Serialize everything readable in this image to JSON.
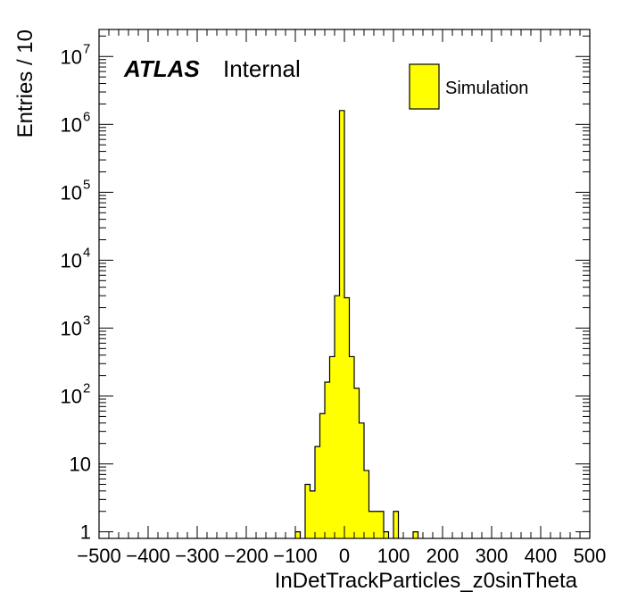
{
  "experiment_label": "ATLAS",
  "status_label": "Internal",
  "chart_data": {
    "type": "histogram",
    "xlabel": "InDetTrackParticles_z0sinTheta",
    "ylabel": "Entries / 10",
    "xlim": [
      -500,
      500
    ],
    "ylim": [
      0.8,
      25000000
    ],
    "log_y": true,
    "bin_width": 10,
    "x_ticks": [
      -500,
      -400,
      -300,
      -200,
      -100,
      0,
      100,
      200,
      300,
      400,
      500
    ],
    "x_tick_labels": [
      "−500",
      "−400",
      "−300",
      "−200",
      "−100",
      "0",
      "100",
      "200",
      "300",
      "400",
      "500"
    ],
    "y_ticks": [
      {
        "value": 1,
        "base": "1",
        "exp": ""
      },
      {
        "value": 10,
        "base": "10",
        "exp": ""
      },
      {
        "value": 100,
        "base": "10",
        "exp": "2"
      },
      {
        "value": 1000,
        "base": "10",
        "exp": "3"
      },
      {
        "value": 10000,
        "base": "10",
        "exp": "4"
      },
      {
        "value": 100000,
        "base": "10",
        "exp": "5"
      },
      {
        "value": 1000000,
        "base": "10",
        "exp": "6"
      },
      {
        "value": 10000000,
        "base": "10",
        "exp": "7"
      }
    ],
    "legend": {
      "position": "top-right",
      "entries": [
        {
          "name": "Simulation",
          "color": "#ffff00"
        }
      ]
    },
    "series": [
      {
        "name": "Simulation",
        "color": "#ffff00",
        "edge_color": "#000000",
        "bins": [
          {
            "x_low": -100,
            "x_high": -90,
            "value": 1
          },
          {
            "x_low": -80,
            "x_high": -70,
            "value": 5
          },
          {
            "x_low": -70,
            "x_high": -60,
            "value": 4
          },
          {
            "x_low": -60,
            "x_high": -50,
            "value": 18
          },
          {
            "x_low": -50,
            "x_high": -40,
            "value": 55
          },
          {
            "x_low": -40,
            "x_high": -30,
            "value": 160
          },
          {
            "x_low": -30,
            "x_high": -20,
            "value": 380
          },
          {
            "x_low": -20,
            "x_high": -10,
            "value": 3000
          },
          {
            "x_low": -10,
            "x_high": 0,
            "value": 1600000
          },
          {
            "x_low": 0,
            "x_high": 10,
            "value": 2800
          },
          {
            "x_low": 10,
            "x_high": 20,
            "value": 380
          },
          {
            "x_low": 20,
            "x_high": 30,
            "value": 130
          },
          {
            "x_low": 30,
            "x_high": 40,
            "value": 40
          },
          {
            "x_low": 40,
            "x_high": 50,
            "value": 8
          },
          {
            "x_low": 50,
            "x_high": 60,
            "value": 2
          },
          {
            "x_low": 60,
            "x_high": 70,
            "value": 2
          },
          {
            "x_low": 70,
            "x_high": 80,
            "value": 2
          },
          {
            "x_low": 80,
            "x_high": 90,
            "value": 1
          },
          {
            "x_low": 100,
            "x_high": 110,
            "value": 2
          },
          {
            "x_low": 140,
            "x_high": 150,
            "value": 1
          }
        ]
      }
    ]
  }
}
